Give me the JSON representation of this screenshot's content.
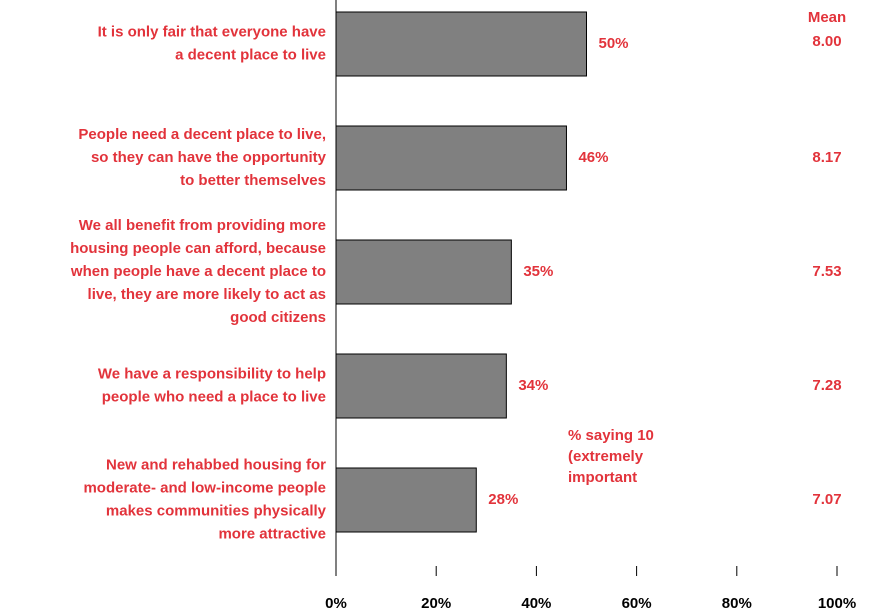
{
  "chart_data": {
    "type": "bar",
    "orientation": "horizontal",
    "categories": [
      [
        "It is only fair that everyone have",
        "a decent place to live"
      ],
      [
        "People need a decent place to live,",
        "so they can have the opportunity",
        "to better themselves"
      ],
      [
        "We all benefit from providing more",
        "housing people can afford, because",
        "when people have a decent place to",
        "live, they are more likely to act as",
        "good citizens"
      ],
      [
        "We have a responsibility to help",
        "people who need a place to live"
      ],
      [
        "New and rehabbed housing for",
        "moderate- and low-income people",
        "makes communities physically",
        "more attractive"
      ]
    ],
    "values": [
      50,
      46,
      35,
      34,
      28
    ],
    "value_labels": [
      "50%",
      "46%",
      "35%",
      "34%",
      "28%"
    ],
    "color": "#808080",
    "mean_header": "Mean",
    "means": [
      "8.00",
      "8.17",
      "7.53",
      "7.28",
      "7.07"
    ],
    "annotation": [
      "% saying 10",
      "(extremely",
      "important"
    ],
    "xlim": [
      0,
      100
    ],
    "xticks": [
      {
        "value": 0,
        "label": "0%"
      },
      {
        "value": 20,
        "label": "20%"
      },
      {
        "value": 40,
        "label": "40%"
      },
      {
        "value": 60,
        "label": "60%"
      },
      {
        "value": 80,
        "label": "80%"
      },
      {
        "value": 100,
        "label": "100%"
      }
    ]
  }
}
